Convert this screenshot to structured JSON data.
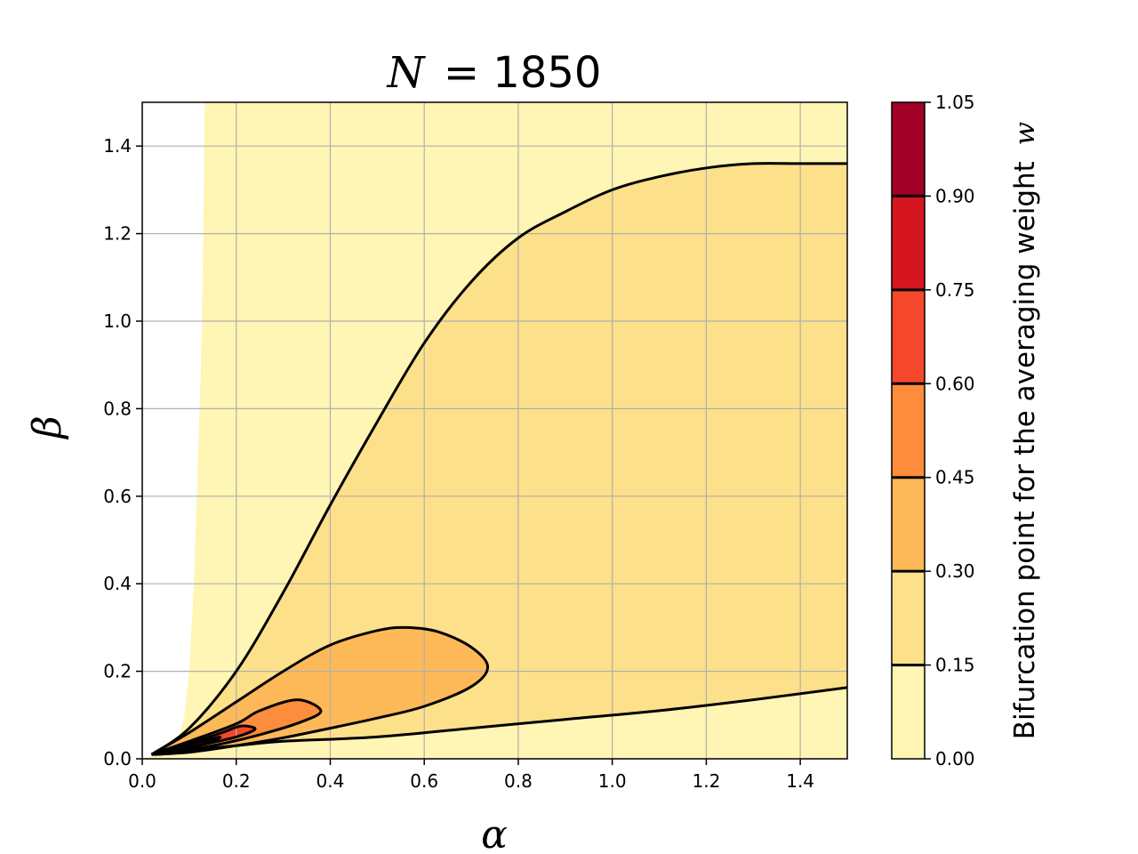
{
  "chart_data": {
    "type": "contourf",
    "title_prefix": "N",
    "title_value": "= 1850",
    "xlabel": "α",
    "ylabel": "β",
    "xlim": [
      0.0,
      1.5
    ],
    "ylim": [
      0.0,
      1.5
    ],
    "xticks": [
      "0.0",
      "0.2",
      "0.4",
      "0.6",
      "0.8",
      "1.0",
      "1.2",
      "1.4"
    ],
    "yticks": [
      "0.0",
      "0.2",
      "0.4",
      "0.6",
      "0.8",
      "1.0",
      "1.2",
      "1.4"
    ],
    "grid": true,
    "colorbar": {
      "label": "Bifurcation point for the averaging weight",
      "label_var": "w",
      "levels": [
        "0.00",
        "0.15",
        "0.30",
        "0.45",
        "0.60",
        "0.75",
        "0.90",
        "1.05"
      ],
      "colors": [
        "#fff5b4",
        "#fde08a",
        "#fdb957",
        "#fd8c3c",
        "#f5472b",
        "#d5161f",
        "#a20027"
      ]
    },
    "contours": [
      {
        "level": "0.15",
        "upper": [
          [
            0.02,
            0.01
          ],
          [
            0.1,
            0.07
          ],
          [
            0.2,
            0.2
          ],
          [
            0.3,
            0.38
          ],
          [
            0.4,
            0.58
          ],
          [
            0.5,
            0.77
          ],
          [
            0.6,
            0.95
          ],
          [
            0.7,
            1.09
          ],
          [
            0.8,
            1.19
          ],
          [
            0.9,
            1.25
          ],
          [
            1.0,
            1.3
          ],
          [
            1.1,
            1.33
          ],
          [
            1.2,
            1.35
          ],
          [
            1.3,
            1.36
          ],
          [
            1.4,
            1.36
          ],
          [
            1.5,
            1.36
          ]
        ],
        "lower": [
          [
            0.02,
            0.01
          ],
          [
            0.1,
            0.02
          ],
          [
            0.2,
            0.03
          ],
          [
            0.3,
            0.04
          ],
          [
            0.5,
            0.05
          ],
          [
            0.7,
            0.07
          ],
          [
            0.9,
            0.09
          ],
          [
            1.1,
            0.11
          ],
          [
            1.3,
            0.135
          ],
          [
            1.5,
            0.163
          ]
        ]
      },
      {
        "level": "0.30",
        "loop": [
          [
            0.02,
            0.01
          ],
          [
            0.1,
            0.06
          ],
          [
            0.2,
            0.13
          ],
          [
            0.3,
            0.2
          ],
          [
            0.4,
            0.26
          ],
          [
            0.5,
            0.293
          ],
          [
            0.56,
            0.3
          ],
          [
            0.63,
            0.29
          ],
          [
            0.7,
            0.255
          ],
          [
            0.735,
            0.21
          ],
          [
            0.7,
            0.165
          ],
          [
            0.6,
            0.12
          ],
          [
            0.5,
            0.093
          ],
          [
            0.4,
            0.07
          ],
          [
            0.3,
            0.048
          ],
          [
            0.2,
            0.03
          ],
          [
            0.1,
            0.015
          ],
          [
            0.02,
            0.01
          ]
        ]
      },
      {
        "level": "0.45",
        "loop": [
          [
            0.02,
            0.01
          ],
          [
            0.1,
            0.04
          ],
          [
            0.2,
            0.08
          ],
          [
            0.25,
            0.11
          ],
          [
            0.33,
            0.135
          ],
          [
            0.38,
            0.11
          ],
          [
            0.34,
            0.085
          ],
          [
            0.25,
            0.055
          ],
          [
            0.15,
            0.03
          ],
          [
            0.06,
            0.015
          ],
          [
            0.02,
            0.01
          ]
        ]
      },
      {
        "level": "0.60",
        "loop": [
          [
            0.02,
            0.01
          ],
          [
            0.1,
            0.035
          ],
          [
            0.17,
            0.06
          ],
          [
            0.21,
            0.075
          ],
          [
            0.24,
            0.068
          ],
          [
            0.2,
            0.05
          ],
          [
            0.12,
            0.03
          ],
          [
            0.05,
            0.012
          ],
          [
            0.02,
            0.01
          ]
        ]
      },
      {
        "level": "0.75",
        "loop": [
          [
            0.02,
            0.01
          ],
          [
            0.08,
            0.025
          ],
          [
            0.13,
            0.04
          ],
          [
            0.165,
            0.05
          ],
          [
            0.15,
            0.04
          ],
          [
            0.1,
            0.025
          ],
          [
            0.04,
            0.012
          ],
          [
            0.02,
            0.01
          ]
        ]
      }
    ],
    "undefined_region_boundary": [
      [
        0.0,
        0.0
      ],
      [
        0.07,
        0.02
      ],
      [
        0.09,
        0.1
      ],
      [
        0.1,
        0.2
      ],
      [
        0.105,
        0.3
      ],
      [
        0.11,
        0.4
      ],
      [
        0.113,
        0.5
      ],
      [
        0.116,
        0.6
      ],
      [
        0.119,
        0.7
      ],
      [
        0.122,
        0.8
      ],
      [
        0.125,
        0.9
      ],
      [
        0.127,
        1.0
      ],
      [
        0.13,
        1.2
      ],
      [
        0.133,
        1.5
      ]
    ]
  }
}
